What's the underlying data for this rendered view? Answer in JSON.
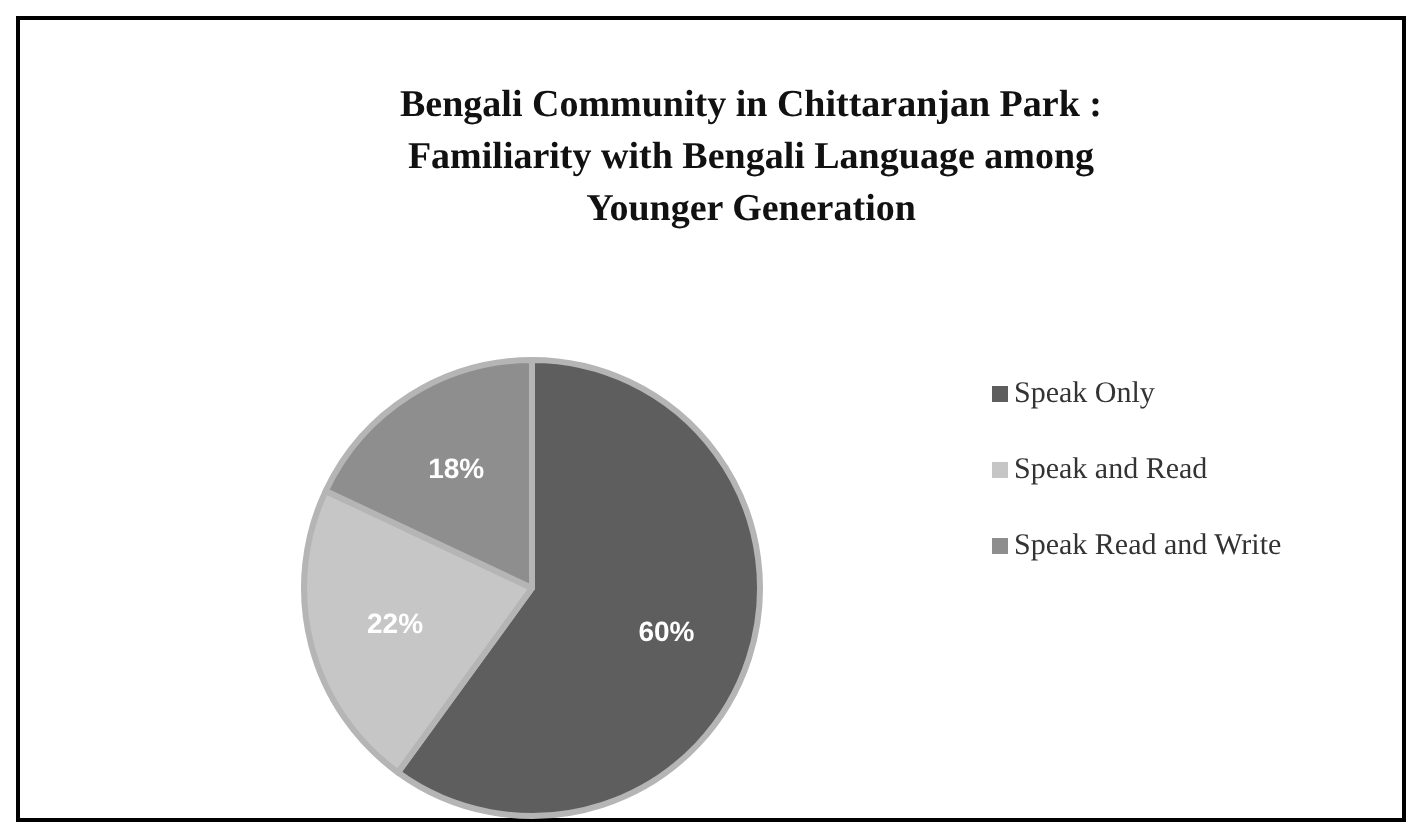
{
  "chart_data": {
    "type": "pie",
    "title": "Bengali Community in Chittaranjan Park :\nFamiliarity with Bengali Language among\nYounger Generation",
    "categories": [
      "Speak Only",
      "Speak and Read",
      "Speak Read and Write"
    ],
    "values": [
      60,
      22,
      18
    ],
    "colors": [
      "#5e5e5e",
      "#c6c6c6",
      "#8e8e8e"
    ],
    "value_labels": [
      "60%",
      "22%",
      "18%"
    ],
    "legend": "right"
  }
}
